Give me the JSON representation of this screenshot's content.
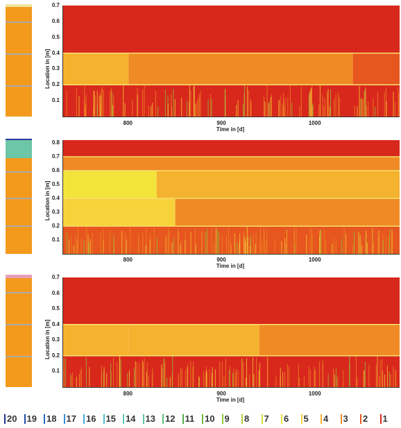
{
  "legend": {
    "items": [
      {
        "label": "20",
        "color": "#1a2f8a"
      },
      {
        "label": "19",
        "color": "#1e4aa8"
      },
      {
        "label": "18",
        "color": "#2a66c0"
      },
      {
        "label": "17",
        "color": "#3a8ad0"
      },
      {
        "label": "16",
        "color": "#46a8d8"
      },
      {
        "label": "15",
        "color": "#52bcd0"
      },
      {
        "label": "14",
        "color": "#5cc6b8"
      },
      {
        "label": "13",
        "color": "#5ec49a"
      },
      {
        "label": "12",
        "color": "#5cbe78"
      },
      {
        "label": "11",
        "color": "#4fae4c"
      },
      {
        "label": "10",
        "color": "#6ab83a"
      },
      {
        "label": "9",
        "color": "#8cc63a"
      },
      {
        "label": "8",
        "color": "#b4d23a"
      },
      {
        "label": "7",
        "color": "#d8de3a"
      },
      {
        "label": "6",
        "color": "#f2e43a"
      },
      {
        "label": "5",
        "color": "#f7d23a"
      },
      {
        "label": "4",
        "color": "#f5b22e"
      },
      {
        "label": "3",
        "color": "#ef8a24"
      },
      {
        "label": "2",
        "color": "#e6561e"
      },
      {
        "label": "1",
        "color": "#d8281c"
      }
    ]
  },
  "chart_data": [
    {
      "type": "heatmap",
      "xlabel": "Time in [d]",
      "ylabel": "Location in [m]",
      "xlim": [
        730,
        1090
      ],
      "ylim": [
        0,
        0.7
      ],
      "x_ticks": [
        800,
        900,
        1000
      ],
      "y_ticks": [
        0.1,
        0.2,
        0.3,
        0.4,
        0.5,
        0.6,
        0.7
      ],
      "layer_boundaries": [
        0.2,
        0.4
      ],
      "profile_colors": [
        "#f39a1c",
        "#f0e6a0"
      ],
      "regions": [
        {
          "y": [
            0.4,
            0.7
          ],
          "x": [
            730,
            1090
          ],
          "class": 1
        },
        {
          "y": [
            0.2,
            0.4
          ],
          "x": [
            730,
            800
          ],
          "class": 4
        },
        {
          "y": [
            0.2,
            0.4
          ],
          "x": [
            800,
            900
          ],
          "class": 3
        },
        {
          "y": [
            0.2,
            0.4
          ],
          "x": [
            900,
            1040
          ],
          "class": 3
        },
        {
          "y": [
            0.2,
            0.4
          ],
          "x": [
            1040,
            1090
          ],
          "class": 2
        },
        {
          "y": [
            0,
            0.2
          ],
          "x": [
            730,
            1090
          ],
          "class": 1
        }
      ]
    },
    {
      "type": "heatmap",
      "xlabel": "Time in [d]",
      "ylabel": "Location in [m]",
      "xlim": [
        730,
        1090
      ],
      "ylim": [
        0,
        0.82
      ],
      "x_ticks": [
        800,
        900,
        1000
      ],
      "y_ticks": [
        0.1,
        0.2,
        0.3,
        0.4,
        0.5,
        0.6,
        0.7,
        0.8
      ],
      "layer_boundaries": [
        0.2,
        0.4,
        0.6,
        0.7
      ],
      "profile_colors": [
        "#f39a1c",
        "#6cc6a8",
        "#2b3a9a"
      ],
      "regions": [
        {
          "y": [
            0.7,
            0.82
          ],
          "x": [
            730,
            1090
          ],
          "class": 1
        },
        {
          "y": [
            0.6,
            0.7
          ],
          "x": [
            730,
            1090
          ],
          "class": 3
        },
        {
          "y": [
            0.4,
            0.6
          ],
          "x": [
            730,
            830
          ],
          "class": 6
        },
        {
          "y": [
            0.4,
            0.6
          ],
          "x": [
            830,
            1090
          ],
          "class": 4
        },
        {
          "y": [
            0.2,
            0.4
          ],
          "x": [
            730,
            850
          ],
          "class": 5
        },
        {
          "y": [
            0.2,
            0.4
          ],
          "x": [
            850,
            1090
          ],
          "class": 3
        },
        {
          "y": [
            0,
            0.2
          ],
          "x": [
            730,
            1090
          ],
          "class": 2
        }
      ]
    },
    {
      "type": "heatmap",
      "xlabel": "Time in [d]",
      "ylabel": "Location in [m]",
      "xlim": [
        730,
        1090
      ],
      "ylim": [
        0,
        0.7
      ],
      "x_ticks": [
        800,
        900,
        1000
      ],
      "y_ticks": [
        0.1,
        0.2,
        0.3,
        0.4,
        0.5,
        0.6,
        0.7
      ],
      "layer_boundaries": [
        0.2,
        0.4
      ],
      "profile_colors": [
        "#f39a1c",
        "#e8a0b8"
      ],
      "regions": [
        {
          "y": [
            0.4,
            0.7
          ],
          "x": [
            730,
            1090
          ],
          "class": 1
        },
        {
          "y": [
            0.2,
            0.4
          ],
          "x": [
            730,
            800
          ],
          "class": 4
        },
        {
          "y": [
            0.2,
            0.4
          ],
          "x": [
            800,
            940
          ],
          "class": 4
        },
        {
          "y": [
            0.2,
            0.4
          ],
          "x": [
            940,
            1090
          ],
          "class": 3
        },
        {
          "y": [
            0,
            0.2
          ],
          "x": [
            730,
            1090
          ],
          "class": 1
        }
      ]
    }
  ]
}
